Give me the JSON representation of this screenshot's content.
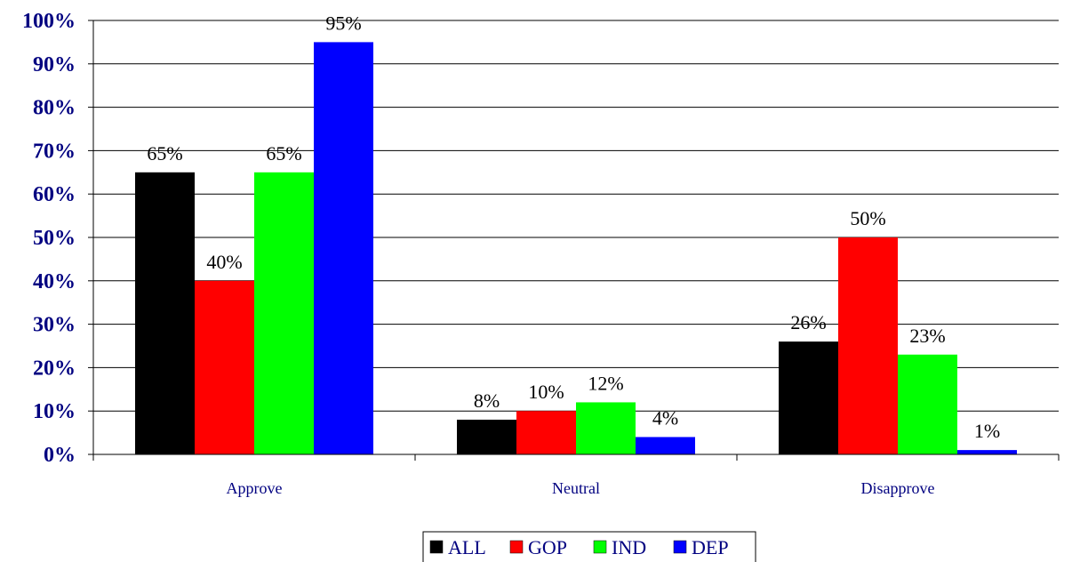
{
  "chart_data": {
    "type": "bar",
    "categories": [
      "Approve",
      "Neutral",
      "Disapprove"
    ],
    "series": [
      {
        "name": "ALL",
        "color": "#000000",
        "values": [
          65,
          8,
          26
        ],
        "labels": [
          "65%",
          "8%",
          "26%"
        ]
      },
      {
        "name": "GOP",
        "color": "#ff0000",
        "values": [
          40,
          10,
          50
        ],
        "labels": [
          "40%",
          "10%",
          "50%"
        ]
      },
      {
        "name": "IND",
        "color": "#00ff00",
        "values": [
          65,
          12,
          23
        ],
        "labels": [
          "65%",
          "12%",
          "23%"
        ]
      },
      {
        "name": "DEP",
        "color": "#0000ff",
        "values": [
          95,
          4,
          1
        ],
        "labels": [
          "95%",
          "4%",
          "1%"
        ]
      }
    ],
    "ylim": [
      0,
      100
    ],
    "yticks": [
      0,
      10,
      20,
      30,
      40,
      50,
      60,
      70,
      80,
      90,
      100
    ],
    "ytick_labels": [
      "0%",
      "10%",
      "20%",
      "30%",
      "40%",
      "50%",
      "60%",
      "70%",
      "80%",
      "90%",
      "100%"
    ],
    "grid": true,
    "legend_position": "bottom-center",
    "title": "",
    "xlabel": "",
    "ylabel": ""
  }
}
